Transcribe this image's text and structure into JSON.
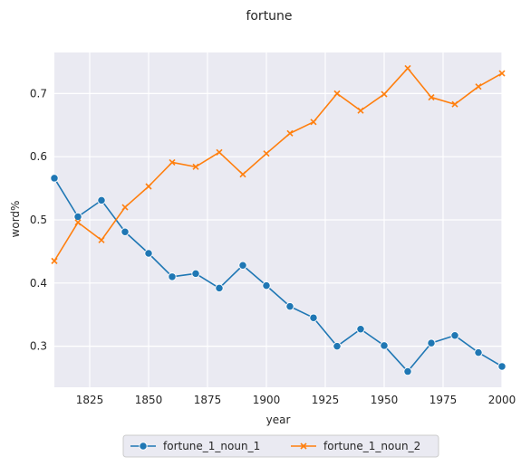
{
  "chart_data": {
    "type": "line",
    "title": "fortune",
    "xlabel": "year",
    "ylabel": "word%",
    "xlim": [
      1810,
      2000
    ],
    "ylim": [
      0.235,
      0.765
    ],
    "xticks": [
      1825,
      1850,
      1875,
      1900,
      1925,
      1950,
      1975,
      2000
    ],
    "yticks": [
      0.3,
      0.4,
      0.5,
      0.6,
      0.7
    ],
    "grid": true,
    "legend_placement": "bottom-center",
    "x": [
      1810,
      1820,
      1830,
      1840,
      1850,
      1860,
      1870,
      1880,
      1890,
      1900,
      1910,
      1920,
      1930,
      1940,
      1950,
      1960,
      1970,
      1980,
      1990,
      2000
    ],
    "series": [
      {
        "name": "fortune_1_noun_1",
        "color": "#1f77b4",
        "marker": "circle",
        "values": [
          0.566,
          0.505,
          0.531,
          0.481,
          0.447,
          0.41,
          0.415,
          0.392,
          0.428,
          0.396,
          0.363,
          0.345,
          0.3,
          0.327,
          0.301,
          0.26,
          0.305,
          0.317,
          0.29,
          0.268
        ]
      },
      {
        "name": "fortune_1_noun_2",
        "color": "#ff7f0e",
        "marker": "x",
        "values": [
          0.435,
          0.496,
          0.468,
          0.52,
          0.553,
          0.591,
          0.584,
          0.607,
          0.572,
          0.605,
          0.637,
          0.655,
          0.7,
          0.673,
          0.699,
          0.74,
          0.694,
          0.683,
          0.711,
          0.732
        ]
      }
    ]
  }
}
